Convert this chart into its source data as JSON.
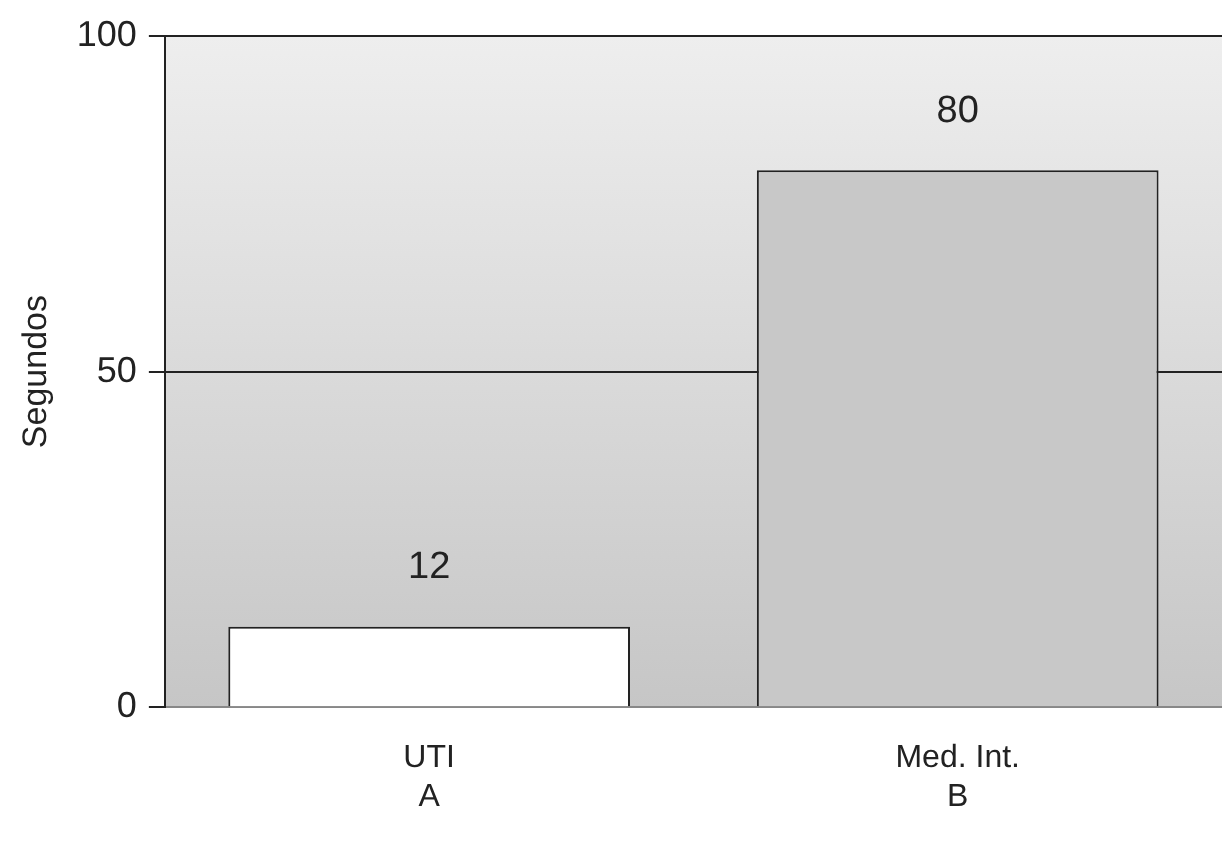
{
  "chart_data": {
    "type": "bar",
    "ylabel": "Segundos",
    "categories": [
      "UTI\nA",
      "Med. Int.\nB"
    ],
    "values": [
      12,
      80
    ],
    "colors": [
      "#ffffff",
      "#c8c8c8"
    ],
    "ylim": [
      0,
      100
    ],
    "yticks": [
      0,
      50,
      100
    ],
    "grid": "y",
    "data_labels": true,
    "legend": false
  }
}
